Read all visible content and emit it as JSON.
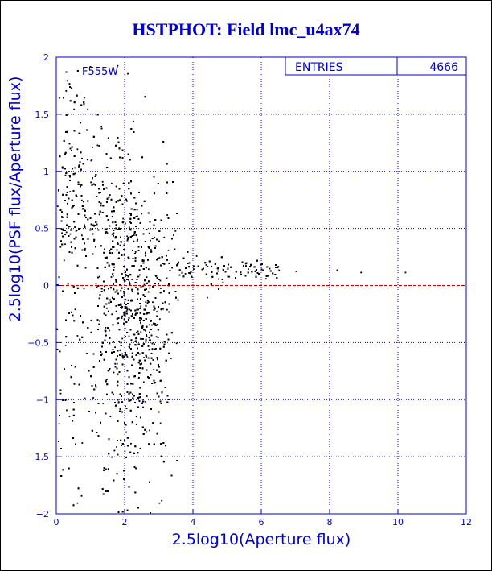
{
  "chart_data": {
    "type": "scatter",
    "title": "HSTPHOT: Field lmc_u4ax74",
    "xlabel": "2.5log10(Aperture flux)",
    "ylabel": "2.5log10(PSF flux/Aperture flux)",
    "xlim": [
      0,
      12
    ],
    "ylim": [
      -2,
      2
    ],
    "x_ticks": [
      0,
      2,
      4,
      6,
      8,
      10,
      12
    ],
    "y_ticks": [
      -2,
      -1.5,
      -1,
      -0.5,
      0,
      0.5,
      1,
      1.5,
      2
    ],
    "grid": true,
    "annotation": "F555W",
    "stats_box": {
      "label": "ENTRIES",
      "value": "4666",
      "position": "top-right"
    },
    "reference_line": {
      "y": 0,
      "color": "#cc0000"
    },
    "entries": 4666,
    "representative_points": [
      [
        0.3,
        1.8
      ],
      [
        0.5,
        1.55
      ],
      [
        0.9,
        1.55
      ],
      [
        0.8,
        1.65
      ],
      [
        1.3,
        1.4
      ],
      [
        0.6,
        1.2
      ],
      [
        1.0,
        1.1
      ],
      [
        1.6,
        0.9
      ],
      [
        2.0,
        0.55
      ],
      [
        2.3,
        0.3
      ],
      [
        3.0,
        0.25
      ],
      [
        4.0,
        0.15
      ],
      [
        5.0,
        0.15
      ],
      [
        5.6,
        0.15
      ],
      [
        5.8,
        0.17
      ],
      [
        6.5,
        0.14
      ],
      [
        7.0,
        0.13
      ],
      [
        8.2,
        0.14
      ],
      [
        8.9,
        0.12
      ],
      [
        10.2,
        0.12
      ],
      [
        1.0,
        -0.3
      ],
      [
        2.0,
        -0.6
      ],
      [
        2.4,
        -0.8
      ],
      [
        2.8,
        -1.2
      ],
      [
        3.0,
        -1.9
      ],
      [
        2.0,
        -1.05
      ],
      [
        1.5,
        -1.6
      ],
      [
        0.6,
        -1.9
      ],
      [
        3.5,
        -0.5
      ],
      [
        4.4,
        -0.1
      ]
    ],
    "point_color": "#000000",
    "grid_color": "#0000cc",
    "text_color": "#0000cc"
  }
}
